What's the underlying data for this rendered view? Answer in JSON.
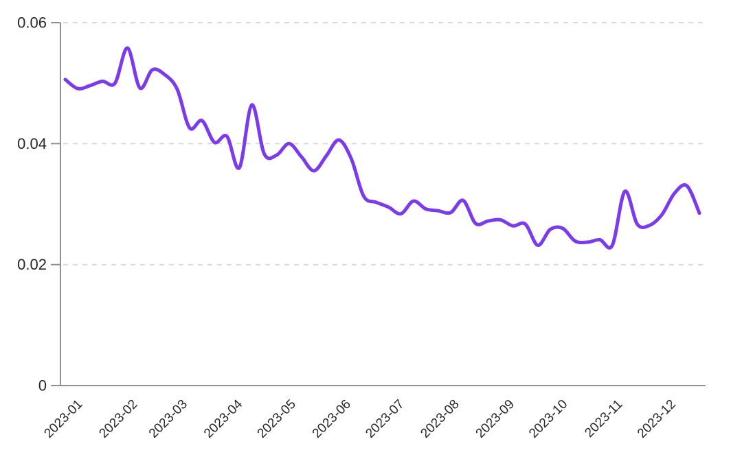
{
  "page": {
    "background_color": "#ffffff"
  },
  "chart_data": {
    "type": "line",
    "title": "",
    "xlabel": "",
    "ylabel": "",
    "legend": "none",
    "grid": "horizontal-dashed",
    "ylim": [
      0,
      0.06
    ],
    "y_tick_labels": [
      "0",
      "0.02",
      "0.04",
      "0.06"
    ],
    "x_tick_labels": [
      "2023-01",
      "2023-02",
      "2023-03",
      "2023-04",
      "2023-05",
      "2023-06",
      "2023-07",
      "2023-08",
      "2023-09",
      "2023-10",
      "2023-11",
      "2023-12"
    ],
    "line_color": "#7C3AED",
    "grid_color": "#d9d9d9",
    "axis_color": "#8c8f96",
    "text_color": "#26262b",
    "dates": [
      "2023-01-01",
      "2023-01-08",
      "2023-01-15",
      "2023-01-22",
      "2023-01-29",
      "2023-02-05",
      "2023-02-12",
      "2023-02-19",
      "2023-02-26",
      "2023-03-05",
      "2023-03-12",
      "2023-03-19",
      "2023-03-26",
      "2023-04-02",
      "2023-04-09",
      "2023-04-16",
      "2023-04-23",
      "2023-04-30",
      "2023-05-07",
      "2023-05-14",
      "2023-05-21",
      "2023-05-28",
      "2023-06-04",
      "2023-06-11",
      "2023-06-18",
      "2023-06-25",
      "2023-07-02",
      "2023-07-09",
      "2023-07-16",
      "2023-07-23",
      "2023-07-30",
      "2023-08-06",
      "2023-08-13",
      "2023-08-20",
      "2023-08-27",
      "2023-09-03",
      "2023-09-10",
      "2023-09-17",
      "2023-09-24",
      "2023-10-01",
      "2023-10-08",
      "2023-10-15",
      "2023-10-22",
      "2023-10-29",
      "2023-11-05",
      "2023-11-12",
      "2023-11-19",
      "2023-11-26",
      "2023-12-03",
      "2023-12-10",
      "2023-12-17",
      "2023-12-24"
    ],
    "values": [
      0.0506,
      0.0491,
      0.0496,
      0.0503,
      0.05,
      0.0558,
      0.0492,
      0.0522,
      0.0514,
      0.049,
      0.0426,
      0.0438,
      0.0402,
      0.0412,
      0.036,
      0.0464,
      0.0383,
      0.0381,
      0.04,
      0.0378,
      0.0355,
      0.038,
      0.0406,
      0.0375,
      0.0313,
      0.0303,
      0.0295,
      0.0284,
      0.0305,
      0.0292,
      0.0289,
      0.0286,
      0.0306,
      0.0268,
      0.0272,
      0.0274,
      0.0264,
      0.0267,
      0.0232,
      0.0258,
      0.026,
      0.0239,
      0.0237,
      0.0241,
      0.0232,
      0.0321,
      0.0267,
      0.0265,
      0.0283,
      0.0318,
      0.033,
      0.0285
    ]
  }
}
